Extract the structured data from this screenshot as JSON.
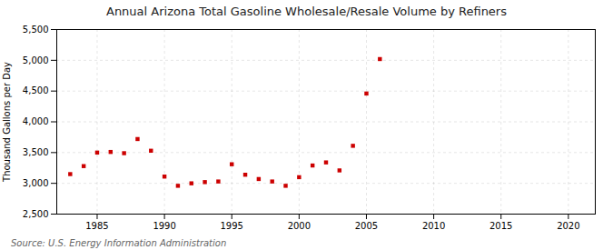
{
  "chart_data": {
    "type": "scatter",
    "title": "Annual Arizona Total Gasoline Wholesale/Resale Volume by Refiners",
    "ylabel": "Thousand Gallons per Day",
    "source": "Source: U.S. Energy Information Administration",
    "x": [
      1983,
      1984,
      1985,
      1986,
      1987,
      1988,
      1989,
      1990,
      1991,
      1992,
      1993,
      1994,
      1995,
      1996,
      1997,
      1998,
      1999,
      2000,
      2001,
      2002,
      2003,
      2004,
      2005,
      2006
    ],
    "values": [
      3150,
      3280,
      3500,
      3510,
      3490,
      3720,
      3530,
      3110,
      2960,
      3000,
      3020,
      3030,
      3310,
      3140,
      3070,
      3030,
      2960,
      3100,
      3290,
      3340,
      3210,
      3610,
      4460,
      5020
    ],
    "color": "#cc0000",
    "marker": "square",
    "grid": true,
    "xlim": [
      1982,
      2022
    ],
    "xticks": [
      1985,
      1990,
      1995,
      2000,
      2005,
      2010,
      2015,
      2020
    ],
    "ylim": [
      2500,
      5500
    ],
    "yticks": [
      {
        "value": 2500,
        "label": "2,500"
      },
      {
        "value": 3000,
        "label": "3,000"
      },
      {
        "value": 3500,
        "label": "3,500"
      },
      {
        "value": 4000,
        "label": "4,000"
      },
      {
        "value": 4500,
        "label": "4,500"
      },
      {
        "value": 5000,
        "label": "5,000"
      },
      {
        "value": 5500,
        "label": "5,500"
      }
    ]
  }
}
